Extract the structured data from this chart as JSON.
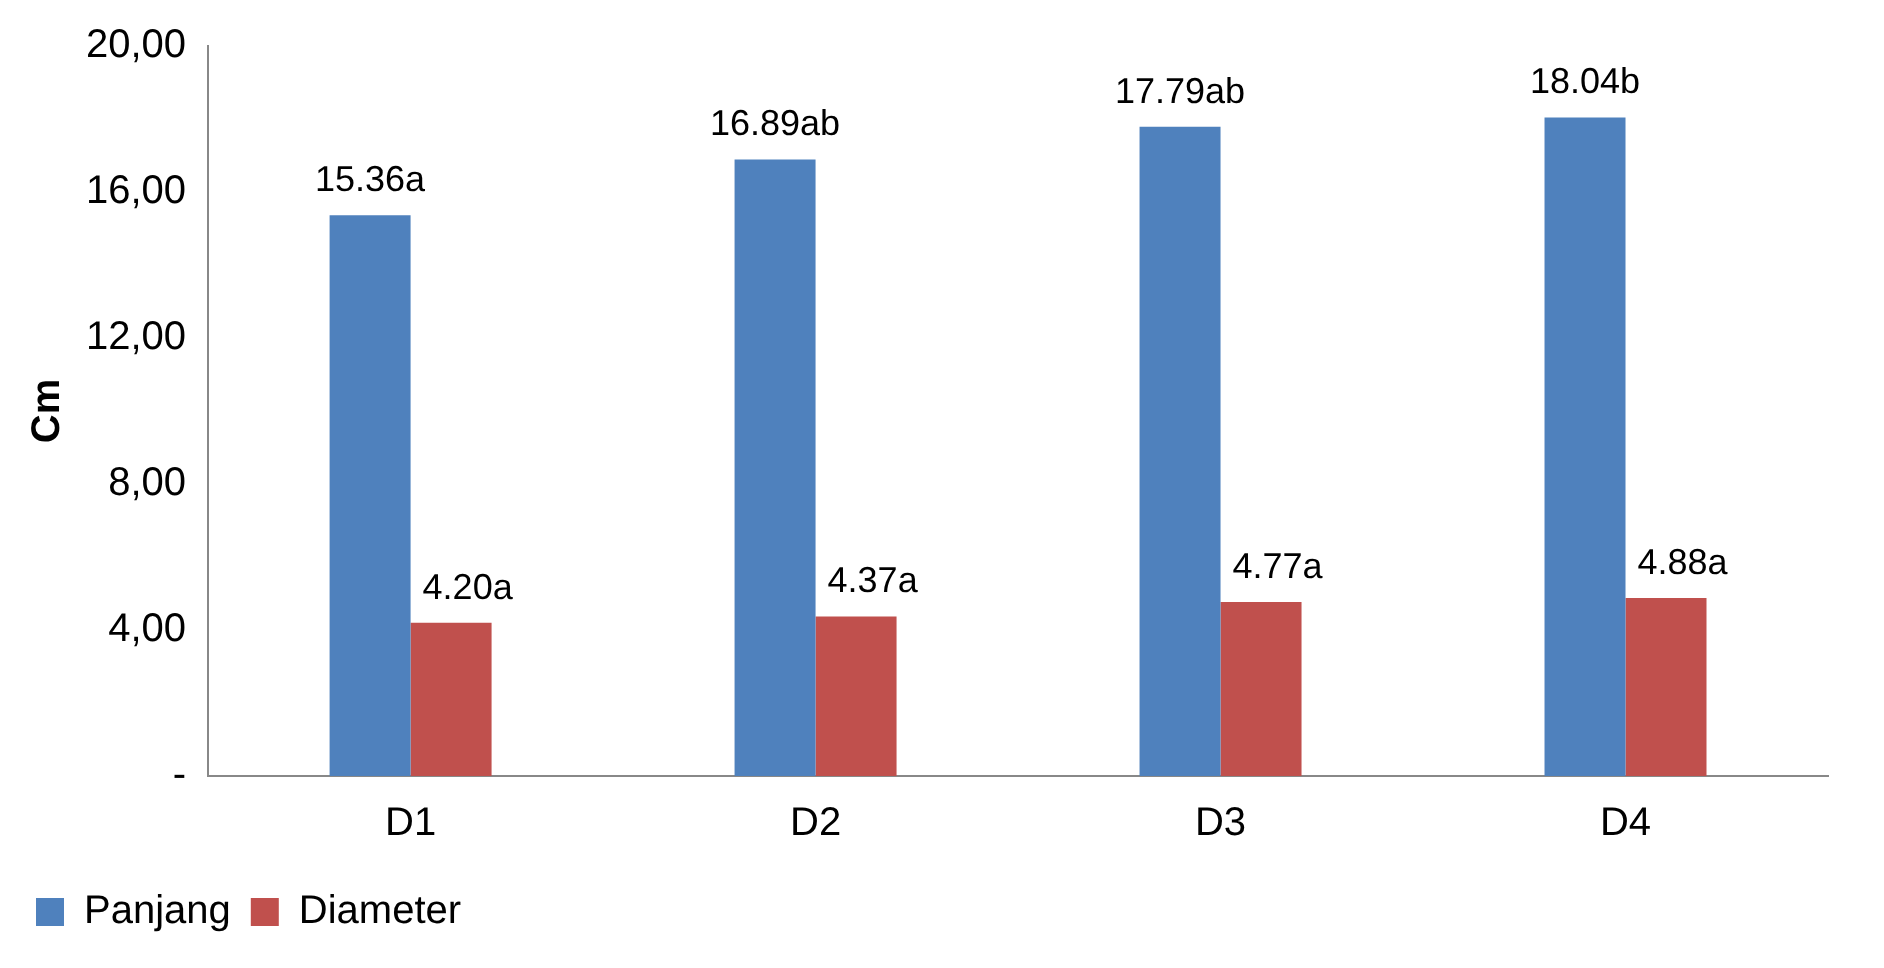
{
  "chart_data": {
    "type": "bar",
    "ylabel": "Cm",
    "categories": [
      "D1",
      "D2",
      "D3",
      "D4"
    ],
    "series": [
      {
        "name": "Panjang",
        "color": "#4f81bd",
        "values": [
          15.36,
          16.89,
          17.79,
          18.04
        ],
        "value_labels": [
          "15.36a",
          "16.89ab",
          "17.79ab",
          "18.04b"
        ]
      },
      {
        "name": "Diameter",
        "color": "#c0504d",
        "values": [
          4.2,
          4.37,
          4.77,
          4.88
        ],
        "value_labels": [
          "4.20a",
          "4.37a",
          "4.77a",
          "4.88a"
        ]
      }
    ],
    "ylim": [
      0,
      20
    ],
    "yticks": [
      {
        "value": 0,
        "label": "-"
      },
      {
        "value": 4,
        "label": "4,00"
      },
      {
        "value": 8,
        "label": "8,00"
      },
      {
        "value": 12,
        "label": "12,00"
      },
      {
        "value": 16,
        "label": "16,00"
      },
      {
        "value": 20,
        "label": "20,00"
      }
    ],
    "grid": false,
    "legend": "bottom left"
  }
}
